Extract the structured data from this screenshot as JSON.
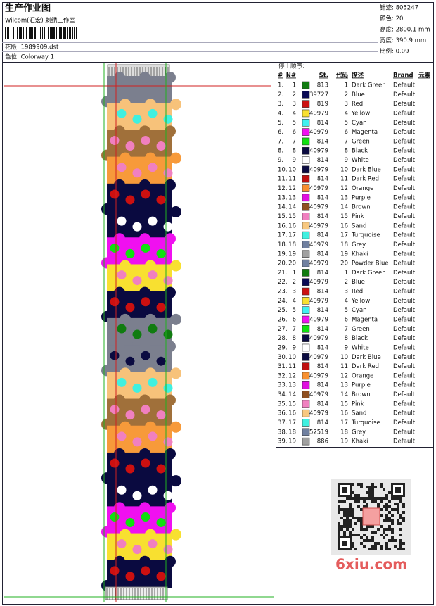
{
  "header": {
    "title": "生产作业图",
    "subtitle": "Wilcom(汇宏) 刺绣工作室",
    "design": "花版: 1989909.dst",
    "colorway": "色位: Colorway 1"
  },
  "stats": [
    "针迹: 805247",
    "颜色: 20",
    "高度: 2800.1 mm",
    "宽度: 390.9 mm",
    "比例: 0.09"
  ],
  "table": {
    "title": "停止顺序:",
    "columns": [
      "#",
      "N#",
      "St.",
      "代码",
      "描述",
      "Brand",
      "元素"
    ],
    "rows": [
      [
        "1.",
        "1",
        "#107c10",
        "813",
        "1",
        "Dark Green",
        "Default"
      ],
      [
        "2.",
        "2",
        "#0a0a55",
        "39727",
        "2",
        "Blue",
        "Default"
      ],
      [
        "3.",
        "3",
        "#cc1010",
        "819",
        "3",
        "Red",
        "Default"
      ],
      [
        "4.",
        "4",
        "#f8e030",
        "40979",
        "4",
        "Yellow",
        "Default"
      ],
      [
        "5.",
        "5",
        "#40f0f0",
        "814",
        "5",
        "Cyan",
        "Default"
      ],
      [
        "6.",
        "6",
        "#f010f0",
        "40979",
        "6",
        "Magenta",
        "Default"
      ],
      [
        "7.",
        "7",
        "#10e010",
        "814",
        "7",
        "Green",
        "Default"
      ],
      [
        "8.",
        "8",
        "#0a0a40",
        "40979",
        "8",
        "Black",
        "Default"
      ],
      [
        "9.",
        "9",
        "#ffffff",
        "814",
        "9",
        "White",
        "Default"
      ],
      [
        "10.",
        "10",
        "#0a0a40",
        "40979",
        "10",
        "Dark Blue",
        "Default"
      ],
      [
        "11.",
        "11",
        "#c01010",
        "814",
        "11",
        "Dark Red",
        "Default"
      ],
      [
        "12.",
        "12",
        "#f89030",
        "40979",
        "12",
        "Orange",
        "Default"
      ],
      [
        "13.",
        "13",
        "#e010e0",
        "814",
        "13",
        "Purple",
        "Default"
      ],
      [
        "14.",
        "14",
        "#905020",
        "40979",
        "14",
        "Brown",
        "Default"
      ],
      [
        "15.",
        "15",
        "#f080c0",
        "814",
        "15",
        "Pink",
        "Default"
      ],
      [
        "16.",
        "16",
        "#f8c880",
        "40979",
        "16",
        "Sand",
        "Default"
      ],
      [
        "17.",
        "17",
        "#40f0e0",
        "814",
        "17",
        "Turquoise",
        "Default"
      ],
      [
        "18.",
        "18",
        "#7080a0",
        "40979",
        "18",
        "Grey",
        "Default"
      ],
      [
        "19.",
        "19",
        "#a0a0a0",
        "814",
        "19",
        "Khaki",
        "Default"
      ],
      [
        "20.",
        "20",
        "#7080a0",
        "40979",
        "20",
        "Powder Blue",
        "Default"
      ],
      [
        "21.",
        "1",
        "#107c10",
        "814",
        "1",
        "Dark Green",
        "Default"
      ],
      [
        "22.",
        "2",
        "#0a0a55",
        "40979",
        "2",
        "Blue",
        "Default"
      ],
      [
        "23.",
        "3",
        "#cc1010",
        "814",
        "3",
        "Red",
        "Default"
      ],
      [
        "24.",
        "4",
        "#f8e030",
        "40979",
        "4",
        "Yellow",
        "Default"
      ],
      [
        "25.",
        "5",
        "#40f0f0",
        "814",
        "5",
        "Cyan",
        "Default"
      ],
      [
        "26.",
        "6",
        "#f010f0",
        "40979",
        "6",
        "Magenta",
        "Default"
      ],
      [
        "27.",
        "7",
        "#10e010",
        "814",
        "7",
        "Green",
        "Default"
      ],
      [
        "28.",
        "8",
        "#0a0a40",
        "40979",
        "8",
        "Black",
        "Default"
      ],
      [
        "29.",
        "9",
        "#ffffff",
        "814",
        "9",
        "White",
        "Default"
      ],
      [
        "30.",
        "10",
        "#0a0a40",
        "40979",
        "10",
        "Dark Blue",
        "Default"
      ],
      [
        "31.",
        "11",
        "#c01010",
        "814",
        "11",
        "Dark Red",
        "Default"
      ],
      [
        "32.",
        "12",
        "#f89030",
        "40979",
        "12",
        "Orange",
        "Default"
      ],
      [
        "33.",
        "13",
        "#e010e0",
        "814",
        "13",
        "Purple",
        "Default"
      ],
      [
        "34.",
        "14",
        "#905020",
        "40979",
        "14",
        "Brown",
        "Default"
      ],
      [
        "35.",
        "15",
        "#f080c0",
        "814",
        "15",
        "Pink",
        "Default"
      ],
      [
        "36.",
        "16",
        "#f8c880",
        "40979",
        "16",
        "Sand",
        "Default"
      ],
      [
        "37.",
        "17",
        "#40f0e0",
        "814",
        "17",
        "Turquoise",
        "Default"
      ],
      [
        "38.",
        "18",
        "#7080a0",
        "52519",
        "18",
        "Grey",
        "Default"
      ],
      [
        "39.",
        "19",
        "#a0a0a0",
        "886",
        "19",
        "Khaki",
        "Default"
      ]
    ]
  },
  "watermark": "6xiu.com"
}
